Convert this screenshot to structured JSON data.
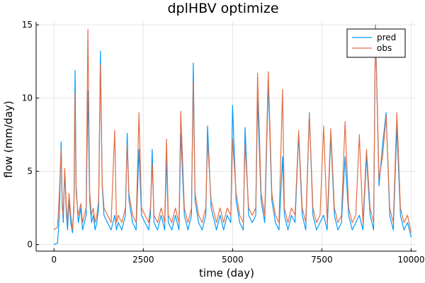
{
  "chart_data": {
    "type": "line",
    "title": "dplHBV optimize",
    "xlabel": "time (day)",
    "ylabel": "flow (mm/day)",
    "xlim": [
      -500,
      10150
    ],
    "ylim": [
      -0.45,
      15.2
    ],
    "xticks": [
      0,
      2500,
      5000,
      7500,
      10000
    ],
    "xtick_labels": [
      "0",
      "2500",
      "5000",
      "7500",
      "10000"
    ],
    "yticks": [
      0,
      5,
      10,
      15
    ],
    "ytick_labels": [
      "0",
      "5",
      "10",
      "15"
    ],
    "grid": true,
    "legend_position": "top-right",
    "series": [
      {
        "name": "pred",
        "color": "#009AFA",
        "x": [
          0,
          100,
          150,
          200,
          230,
          260,
          300,
          350,
          380,
          420,
          470,
          520,
          560,
          590,
          620,
          680,
          750,
          800,
          850,
          900,
          950,
          1000,
          1050,
          1100,
          1150,
          1200,
          1250,
          1300,
          1350,
          1400,
          1500,
          1600,
          1700,
          1750,
          1800,
          1900,
          2000,
          2050,
          2100,
          2200,
          2300,
          2380,
          2450,
          2550,
          2650,
          2700,
          2750,
          2800,
          2900,
          3000,
          3100,
          3150,
          3200,
          3300,
          3400,
          3500,
          3550,
          3650,
          3750,
          3850,
          3900,
          3950,
          4050,
          4150,
          4250,
          4300,
          4400,
          4500,
          4550,
          4650,
          4750,
          4850,
          4950,
          5000,
          5100,
          5200,
          5300,
          5350,
          5450,
          5550,
          5650,
          5700,
          5800,
          5900,
          6000,
          6100,
          6200,
          6300,
          6400,
          6450,
          6550,
          6650,
          6750,
          6850,
          6950,
          7050,
          7150,
          7250,
          7350,
          7450,
          7550,
          7650,
          7750,
          7850,
          7950,
          8050,
          8150,
          8250,
          8350,
          8450,
          8550,
          8650,
          8750,
          8850,
          8950,
          9000,
          9100,
          9200,
          9300,
          9400,
          9500,
          9600,
          9700,
          9800,
          9900,
          10000
        ],
        "y": [
          0.0,
          0.1,
          2.0,
          7.0,
          3.0,
          1.5,
          5.0,
          2.0,
          1.0,
          3.0,
          1.5,
          0.8,
          3.0,
          11.9,
          4.0,
          1.5,
          2.5,
          1.0,
          1.5,
          2.0,
          10.5,
          3.0,
          1.5,
          2.0,
          1.0,
          1.5,
          2.5,
          13.2,
          4.0,
          2.0,
          1.5,
          1.0,
          2.0,
          1.0,
          1.5,
          1.0,
          2.0,
          7.6,
          3.0,
          1.5,
          1.0,
          6.5,
          2.0,
          1.5,
          1.0,
          2.0,
          6.5,
          1.5,
          1.0,
          2.0,
          1.0,
          6.0,
          1.5,
          1.0,
          2.0,
          1.0,
          7.6,
          2.0,
          1.0,
          2.0,
          12.4,
          3.0,
          1.5,
          1.0,
          2.0,
          8.1,
          2.5,
          1.5,
          1.0,
          2.0,
          1.0,
          2.0,
          1.5,
          9.5,
          3.0,
          1.5,
          1.0,
          8.0,
          2.0,
          1.5,
          2.0,
          10.0,
          3.0,
          1.5,
          11.0,
          3.0,
          1.5,
          1.0,
          6.0,
          2.0,
          1.0,
          2.0,
          1.5,
          7.5,
          2.0,
          1.0,
          9.0,
          2.0,
          1.0,
          1.5,
          2.0,
          1.0,
          7.5,
          2.0,
          1.0,
          1.5,
          6.0,
          2.0,
          1.0,
          1.5,
          2.0,
          1.0,
          6.0,
          2.0,
          1.0,
          15.0,
          4.0,
          6.8,
          9.0,
          2.0,
          1.0,
          8.0,
          2.0,
          1.0,
          1.5,
          0.5
        ]
      },
      {
        "name": "obs",
        "color": "#E26F46",
        "x": [
          0,
          100,
          150,
          200,
          230,
          260,
          300,
          350,
          380,
          420,
          470,
          520,
          560,
          590,
          620,
          680,
          750,
          800,
          850,
          900,
          950,
          1000,
          1050,
          1100,
          1150,
          1200,
          1250,
          1300,
          1350,
          1400,
          1500,
          1600,
          1700,
          1750,
          1800,
          1900,
          2000,
          2050,
          2100,
          2200,
          2300,
          2380,
          2450,
          2550,
          2650,
          2700,
          2750,
          2800,
          2900,
          3000,
          3100,
          3150,
          3200,
          3300,
          3400,
          3500,
          3550,
          3650,
          3750,
          3850,
          3900,
          3950,
          4050,
          4150,
          4250,
          4300,
          4400,
          4500,
          4550,
          4650,
          4750,
          4850,
          4950,
          5000,
          5100,
          5200,
          5300,
          5350,
          5450,
          5550,
          5650,
          5700,
          5800,
          5900,
          6000,
          6100,
          6200,
          6300,
          6400,
          6450,
          6550,
          6650,
          6750,
          6850,
          6950,
          7050,
          7150,
          7250,
          7350,
          7450,
          7550,
          7650,
          7750,
          7850,
          7950,
          8050,
          8150,
          8250,
          8350,
          8450,
          8550,
          8650,
          8750,
          8850,
          8950,
          9000,
          9100,
          9200,
          9300,
          9400,
          9500,
          9600,
          9700,
          9800,
          9900,
          10000
        ],
        "y": [
          1.0,
          1.2,
          3.5,
          6.5,
          2.5,
          2.0,
          5.2,
          2.5,
          1.5,
          3.5,
          2.0,
          1.0,
          2.5,
          10.3,
          3.5,
          2.0,
          2.8,
          1.5,
          2.0,
          2.5,
          14.7,
          3.5,
          2.0,
          2.5,
          1.5,
          2.0,
          3.0,
          12.3,
          4.2,
          2.5,
          2.0,
          1.5,
          7.8,
          1.5,
          2.0,
          1.5,
          2.5,
          6.8,
          3.5,
          2.0,
          1.5,
          9.0,
          2.5,
          2.0,
          1.5,
          2.5,
          5.5,
          2.0,
          1.5,
          2.5,
          1.5,
          7.2,
          2.0,
          1.5,
          2.5,
          1.5,
          9.1,
          2.5,
          1.5,
          2.5,
          11.1,
          3.5,
          2.0,
          1.5,
          2.5,
          7.0,
          3.0,
          2.0,
          1.5,
          2.5,
          1.5,
          2.5,
          2.0,
          7.2,
          3.5,
          2.0,
          1.5,
          6.8,
          2.5,
          2.0,
          2.5,
          11.7,
          3.5,
          2.0,
          11.8,
          3.5,
          2.0,
          1.5,
          10.6,
          2.5,
          1.5,
          2.5,
          2.0,
          7.8,
          2.5,
          1.5,
          8.9,
          2.5,
          1.5,
          2.0,
          8.1,
          1.5,
          7.9,
          2.5,
          1.5,
          2.0,
          8.4,
          2.5,
          1.5,
          2.0,
          7.5,
          1.5,
          6.5,
          2.5,
          1.5,
          14.9,
          4.5,
          6.0,
          8.8,
          2.5,
          1.5,
          9.0,
          2.5,
          1.5,
          2.0,
          0.8
        ]
      }
    ]
  }
}
